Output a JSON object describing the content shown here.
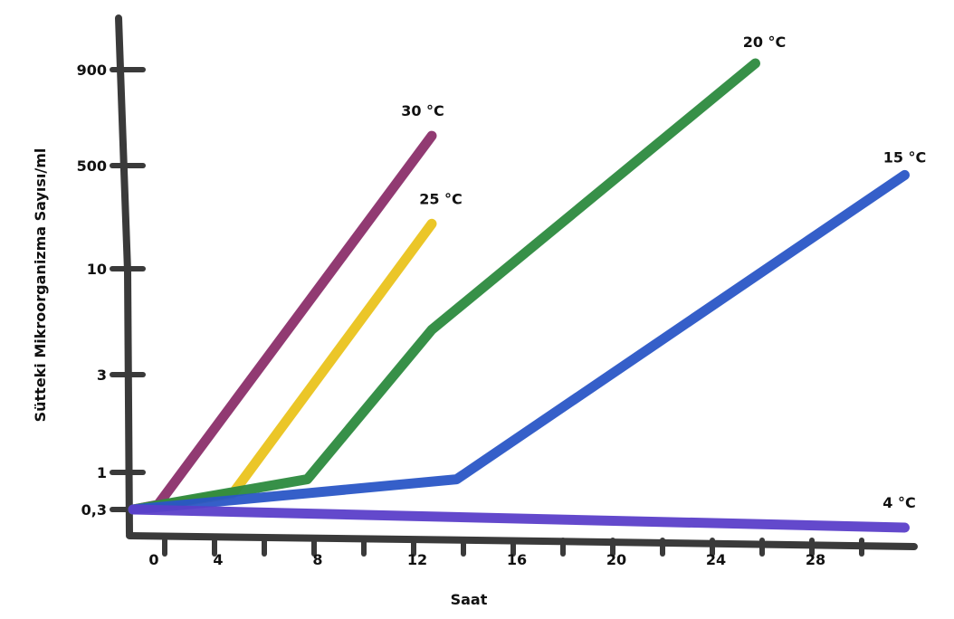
{
  "chart_data": {
    "type": "line",
    "xlabel": "Saat",
    "ylabel": "Sütteki Mikroorganizma Sayısı/ml",
    "x_ticks": [
      "0",
      "4",
      "8",
      "12",
      "16",
      "20",
      "24",
      "28"
    ],
    "y_ticks": [
      "0,3",
      "1",
      "3",
      "10",
      "500",
      "900"
    ],
    "y_scale": "categorical-log (non-uniform tick spacing)",
    "series": [
      {
        "name": "30 °C",
        "color": "#8b2f6a",
        "points": [
          [
            0,
            0.3
          ],
          [
            1,
            0.35
          ],
          [
            12,
            600
          ]
        ]
      },
      {
        "name": "25 °C",
        "color": "#eac31c",
        "points": [
          [
            0,
            0.3
          ],
          [
            4,
            0.5
          ],
          [
            12,
            55
          ]
        ]
      },
      {
        "name": "20 °C",
        "color": "#2c8a3e",
        "points": [
          [
            0,
            0.3
          ],
          [
            7,
            0.8
          ],
          [
            12,
            5
          ],
          [
            25,
            1000
          ]
        ]
      },
      {
        "name": "15 °C",
        "color": "#2a56c6",
        "points": [
          [
            0,
            0.3
          ],
          [
            13,
            0.8
          ],
          [
            31,
            350
          ]
        ]
      },
      {
        "name": "4 °C",
        "color": "#5b3fc9",
        "points": [
          [
            0,
            0.3
          ],
          [
            31,
            0.25
          ]
        ]
      }
    ]
  }
}
